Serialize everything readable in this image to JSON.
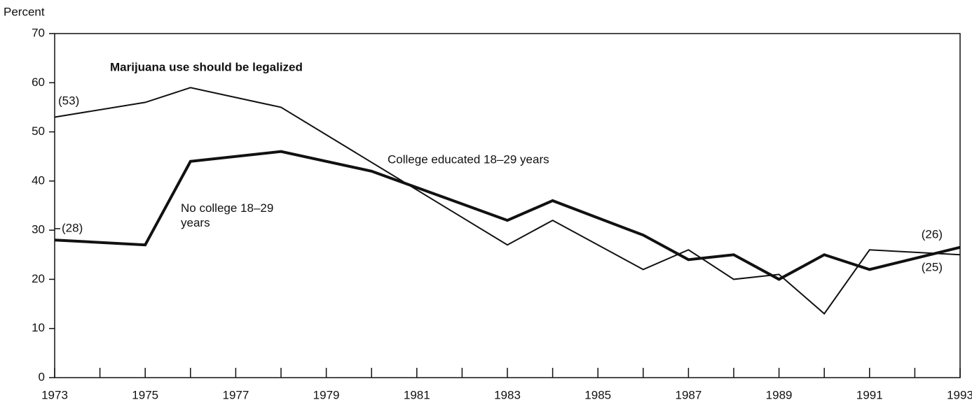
{
  "chart_data": {
    "type": "line",
    "title": "Marijuana use should be legalized",
    "ylabel": "Percent",
    "xlim": [
      1973,
      1993
    ],
    "xticks": [
      1973,
      1975,
      1977,
      1979,
      1981,
      1983,
      1985,
      1987,
      1989,
      1991,
      1993
    ],
    "xminorticks": [
      1974,
      1976,
      1978,
      1980,
      1982,
      1984,
      1986,
      1988,
      1990,
      1992
    ],
    "ylim": [
      0,
      70
    ],
    "yticks": [
      0,
      10,
      20,
      30,
      40,
      50,
      60,
      70
    ],
    "series": [
      {
        "name": "College educated 18–29 years",
        "color": "#111111",
        "width": 2,
        "x": [
          1973,
          1975,
          1976,
          1978,
          1983,
          1984,
          1986,
          1987,
          1988,
          1989,
          1990,
          1991,
          1993
        ],
        "values": [
          53,
          56,
          59,
          55,
          27,
          32,
          22,
          26,
          20,
          21,
          13,
          26,
          25
        ],
        "value_labels": [
          "(53)",
          null,
          null,
          null,
          null,
          null,
          null,
          null,
          null,
          null,
          null,
          null,
          "(25)"
        ]
      },
      {
        "name": "No college 18–29 years",
        "color": "#111111",
        "width": 4,
        "x": [
          1973,
          1975,
          1976,
          1978,
          1980,
          1983,
          1984,
          1986,
          1987,
          1988,
          1989,
          1990,
          1991,
          1993
        ],
        "values": [
          28,
          27,
          44,
          46,
          42,
          32,
          36,
          29,
          24,
          25,
          20,
          25,
          22,
          26.5
        ],
        "value_labels": [
          "(28)",
          null,
          null,
          null,
          null,
          null,
          null,
          null,
          null,
          null,
          null,
          null,
          null,
          "(26)"
        ]
      }
    ]
  }
}
